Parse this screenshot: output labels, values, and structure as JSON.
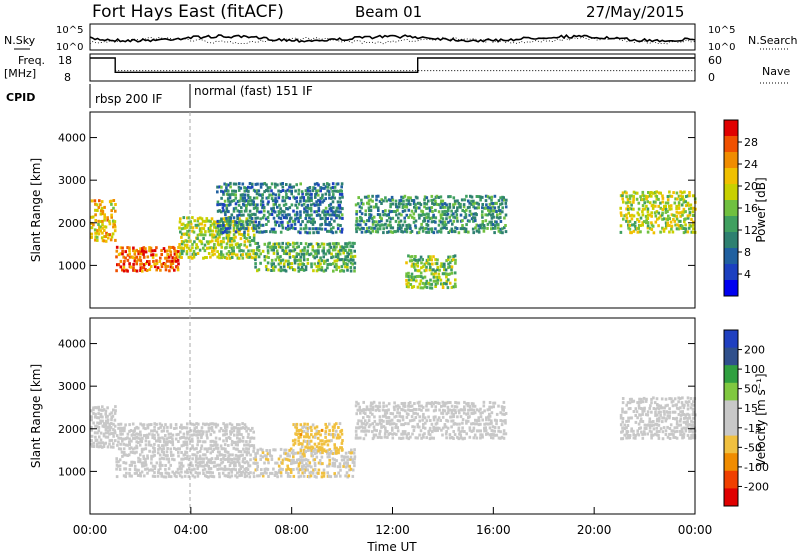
{
  "header": {
    "station": "Fort Hays East (fitACF)",
    "beam": "Beam 01",
    "date": "27/May/2015"
  },
  "top_panels": {
    "nsky_label": "N.Sky",
    "nsearch_label": "N.Search",
    "freq_label_1": "Freq.",
    "freq_label_2": "[MHz]",
    "nave_label": "Nave",
    "cpid_label": "CPID",
    "left_ticks_top": [
      "10^5",
      "10^0"
    ],
    "right_ticks_top": [
      "10^5",
      "10^0"
    ],
    "left_ticks_freq": [
      "18",
      "8"
    ],
    "right_ticks_nave": [
      "60",
      "0"
    ],
    "cpid_segments": [
      {
        "label": "rbsp 200 IF",
        "start_hour": 0,
        "end_hour": 4
      },
      {
        "label": "normal (fast) 151 IF",
        "start_hour": 4,
        "end_hour": 24
      }
    ],
    "freq_steps_mhz": [
      {
        "start_hour": 0,
        "end_hour": 1.0,
        "value": 18
      },
      {
        "start_hour": 1.0,
        "end_hour": 13.0,
        "value": 10.5
      },
      {
        "start_hour": 13.0,
        "end_hour": 24,
        "value": 18
      }
    ],
    "nave_level": 20
  },
  "panels": {
    "power": {
      "ylabel": "Slant Range [km]",
      "cbar_label": "Power [dB]",
      "cbar_ticks": [
        "28",
        "24",
        "20",
        "16",
        "12",
        "8",
        "4"
      ],
      "cbar_colors": [
        "#e00000",
        "#f05000",
        "#f08c00",
        "#f0c000",
        "#c8d000",
        "#70c040",
        "#40a060",
        "#2e8070",
        "#2060a0",
        "#1c40c0",
        "#0000f0"
      ]
    },
    "velocity": {
      "ylabel": "Slant Range [km]",
      "cbar_label": "Velocity [m s⁻¹]",
      "cbar_ticks": [
        "200",
        "100",
        "50",
        "15",
        "-15",
        "-50",
        "-100",
        "-200"
      ],
      "cbar_colors": [
        "#2040c0",
        "#30508c",
        "#30a040",
        "#80c840",
        "#c8c8c8",
        "#c8c8c8",
        "#f0c040",
        "#f08c00",
        "#f04000",
        "#e00000"
      ]
    }
  },
  "x_axis": {
    "label": "Time UT",
    "tick_labels": [
      "00:00",
      "04:00",
      "08:00",
      "12:00",
      "16:00",
      "20:00",
      "00:00"
    ]
  },
  "chart_data": {
    "type": "heatmap",
    "title": "Fort Hays East (fitACF)",
    "xlabel": "Time UT",
    "ylabel": "Slant Range [km]",
    "x_range_hours": [
      0,
      24
    ],
    "ylim_km": [
      0,
      4600
    ],
    "y_ticks_km": [
      1000,
      2000,
      3000,
      4000
    ],
    "power_echo_bands": [
      {
        "start_hour": 0.0,
        "end_hour": 1.0,
        "range_km": [
          1600,
          2600
        ],
        "power_db": 20
      },
      {
        "start_hour": 1.0,
        "end_hour": 3.5,
        "range_km": [
          900,
          1500
        ],
        "power_db": 24
      },
      {
        "start_hour": 3.5,
        "end_hour": 6.5,
        "range_km": [
          1200,
          2200
        ],
        "power_db": 16
      },
      {
        "start_hour": 6.5,
        "end_hour": 10.5,
        "range_km": [
          900,
          1600
        ],
        "power_db": 12
      },
      {
        "start_hour": 5.0,
        "end_hour": 10.0,
        "range_km": [
          1800,
          3000
        ],
        "power_db": 8
      },
      {
        "start_hour": 10.5,
        "end_hour": 16.5,
        "range_km": [
          1800,
          2700
        ],
        "power_db": 10
      },
      {
        "start_hour": 12.5,
        "end_hour": 14.5,
        "range_km": [
          500,
          1300
        ],
        "power_db": 14
      },
      {
        "start_hour": 21.0,
        "end_hour": 24.0,
        "range_km": [
          1800,
          2800
        ],
        "power_db": 16
      }
    ],
    "velocity_echo_bands": [
      {
        "start_hour": 0.0,
        "end_hour": 1.0,
        "range_km": [
          1600,
          2600
        ],
        "velocity_ms": 0
      },
      {
        "start_hour": 1.0,
        "end_hour": 6.5,
        "range_km": [
          900,
          2200
        ],
        "velocity_ms": 0
      },
      {
        "start_hour": 6.5,
        "end_hour": 10.5,
        "range_km": [
          900,
          1600
        ],
        "velocity_ms": -30
      },
      {
        "start_hour": 8.0,
        "end_hour": 10.0,
        "range_km": [
          1500,
          2200
        ],
        "velocity_ms": -60
      },
      {
        "start_hour": 10.5,
        "end_hour": 16.5,
        "range_km": [
          1800,
          2700
        ],
        "velocity_ms": 0
      },
      {
        "start_hour": 21.0,
        "end_hour": 24.0,
        "range_km": [
          1800,
          2800
        ],
        "velocity_ms": 0
      }
    ]
  }
}
